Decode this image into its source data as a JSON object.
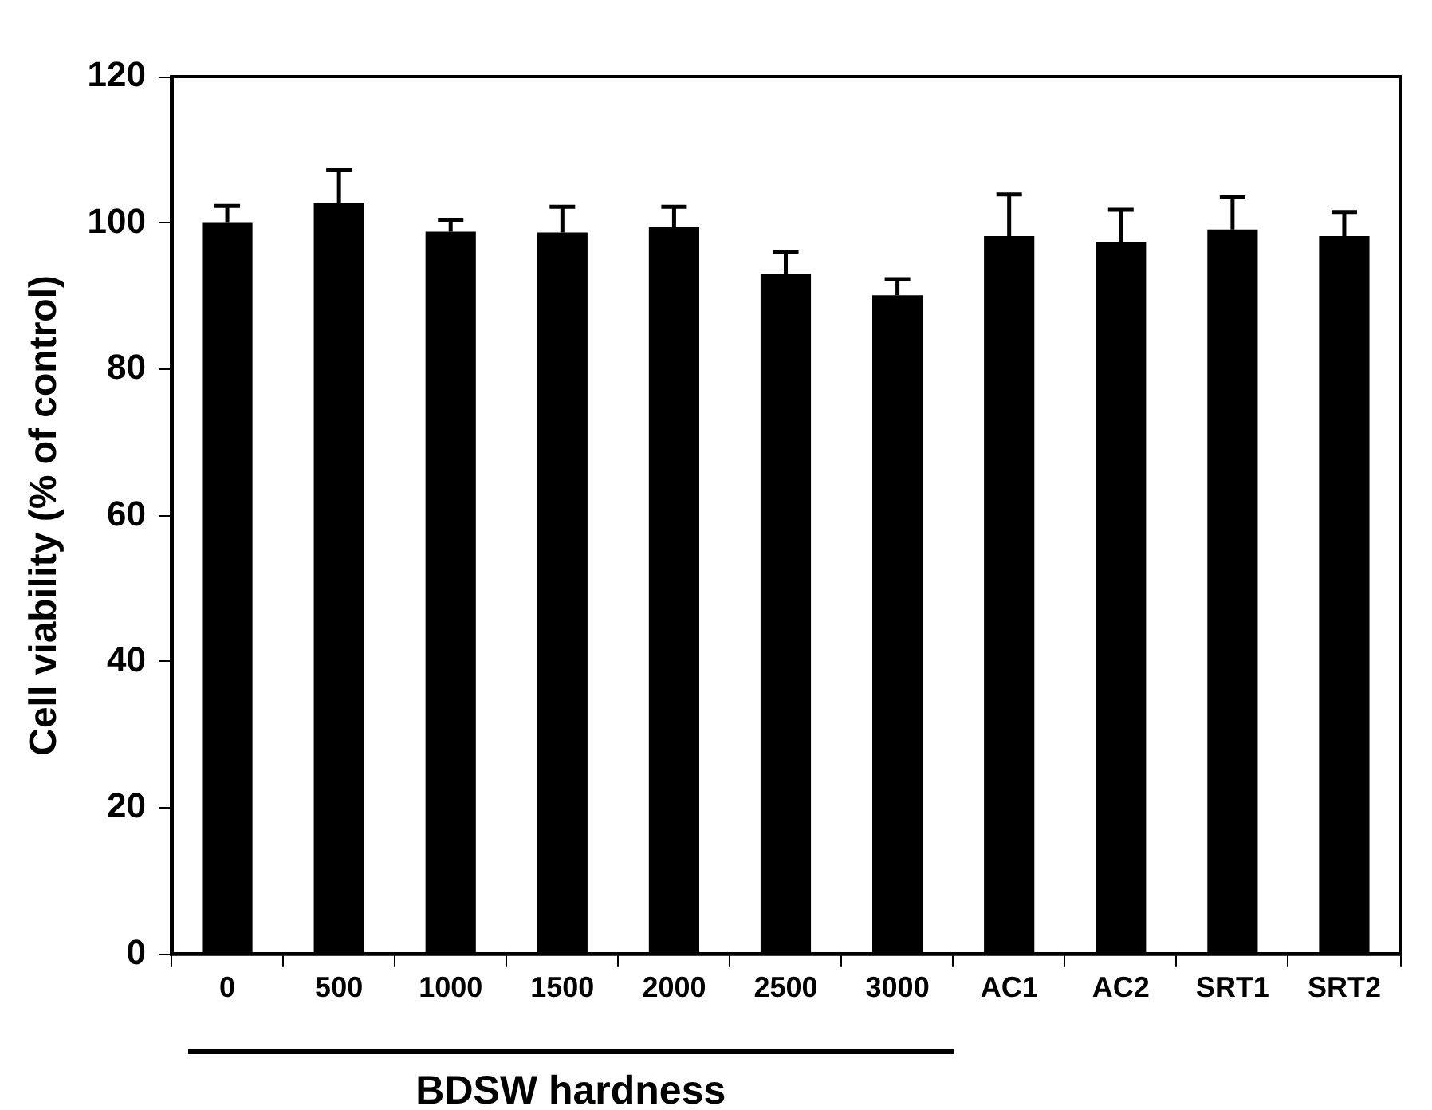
{
  "chart_data": {
    "type": "bar",
    "xlabel": "BDSW hardness",
    "ylabel": "Cell viability (% of control)",
    "categories": [
      "0",
      "500",
      "1000",
      "1500",
      "2000",
      "2500",
      "3000",
      "AC1",
      "AC2",
      "SRT1",
      "SRT2"
    ],
    "values": [
      100,
      102.7,
      98.8,
      98.7,
      99.4,
      93,
      90.1,
      98.2,
      97.4,
      99.1,
      98.2
    ],
    "errors": [
      [
        100,
        102.3
      ],
      [
        102.7,
        107.2
      ],
      [
        98.8,
        100.4
      ],
      [
        98.7,
        102.2
      ],
      [
        99.4,
        102.2
      ],
      [
        93,
        96
      ],
      [
        90.1,
        92.3
      ],
      [
        98.2,
        103.9
      ],
      [
        97.4,
        101.8
      ],
      [
        99.1,
        103.5
      ],
      [
        98.2,
        101.5
      ]
    ],
    "color": "#000000",
    "ylim": [
      0,
      120
    ],
    "yticks": [
      0,
      20,
      40,
      60,
      80,
      100,
      120
    ],
    "grid": false,
    "legend": false
  }
}
